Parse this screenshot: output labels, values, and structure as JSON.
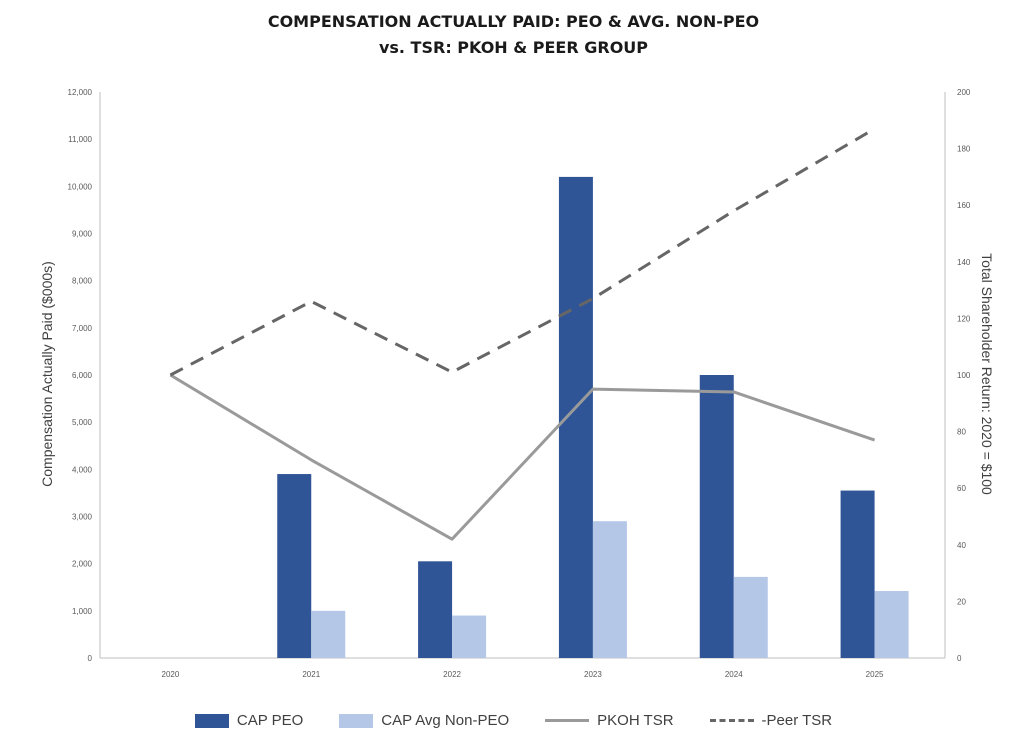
{
  "chart_data": {
    "type": "bar",
    "title": "COMPENSATION ACTUALLY PAID: PEO & AVG. NON-PEO",
    "subtitle": "vs. TSR: PKOH & PEER GROUP",
    "categories": [
      "2020",
      "2021",
      "2022",
      "2023",
      "2024",
      "2025"
    ],
    "ylabel": "Compensation Actually Paid ($000s)",
    "ylabel_right": "Total Shareholder Return: 2020 = $100",
    "ylim": [
      0,
      12000
    ],
    "ylim_right": [
      0,
      200
    ],
    "yticks": [
      "0",
      "1,000",
      "2,000",
      "3,000",
      "4,000",
      "5,000",
      "6,000",
      "7,000",
      "8,000",
      "9,000",
      "10,000",
      "11,000",
      "12,000"
    ],
    "yticks_right": [
      "0",
      "20",
      "40",
      "60",
      "80",
      "100",
      "120",
      "140",
      "160",
      "180",
      "200"
    ],
    "bar_series": [
      {
        "name": "CAP PEO",
        "color": "#2f5597",
        "values": [
          null,
          3900,
          2050,
          10200,
          6000,
          3550
        ]
      },
      {
        "name": "CAP Avg Non-PEO",
        "color": "#b4c7e7",
        "values": [
          null,
          1000,
          900,
          2900,
          1720,
          1420
        ]
      }
    ],
    "line_series": [
      {
        "name": "PKOH TSR",
        "color": "#9a9a9a",
        "style": "solid",
        "axis": "right",
        "values": [
          100,
          70,
          42,
          95,
          94,
          77
        ]
      },
      {
        "name": "Peer TSR",
        "color": "#666666",
        "style": "dashed",
        "axis": "right",
        "values": [
          100,
          126,
          101,
          127,
          158,
          187
        ]
      }
    ],
    "legend": [
      "CAP PEO",
      "CAP Avg Non-PEO",
      "PKOH TSR",
      "Peer TSR"
    ],
    "legend_labels": [
      "CAP PEO",
      "CAP Avg Non-PEO",
      "PKOH TSR",
      "-Peer TSR"
    ],
    "legend_position": "bottom",
    "grid": false
  }
}
